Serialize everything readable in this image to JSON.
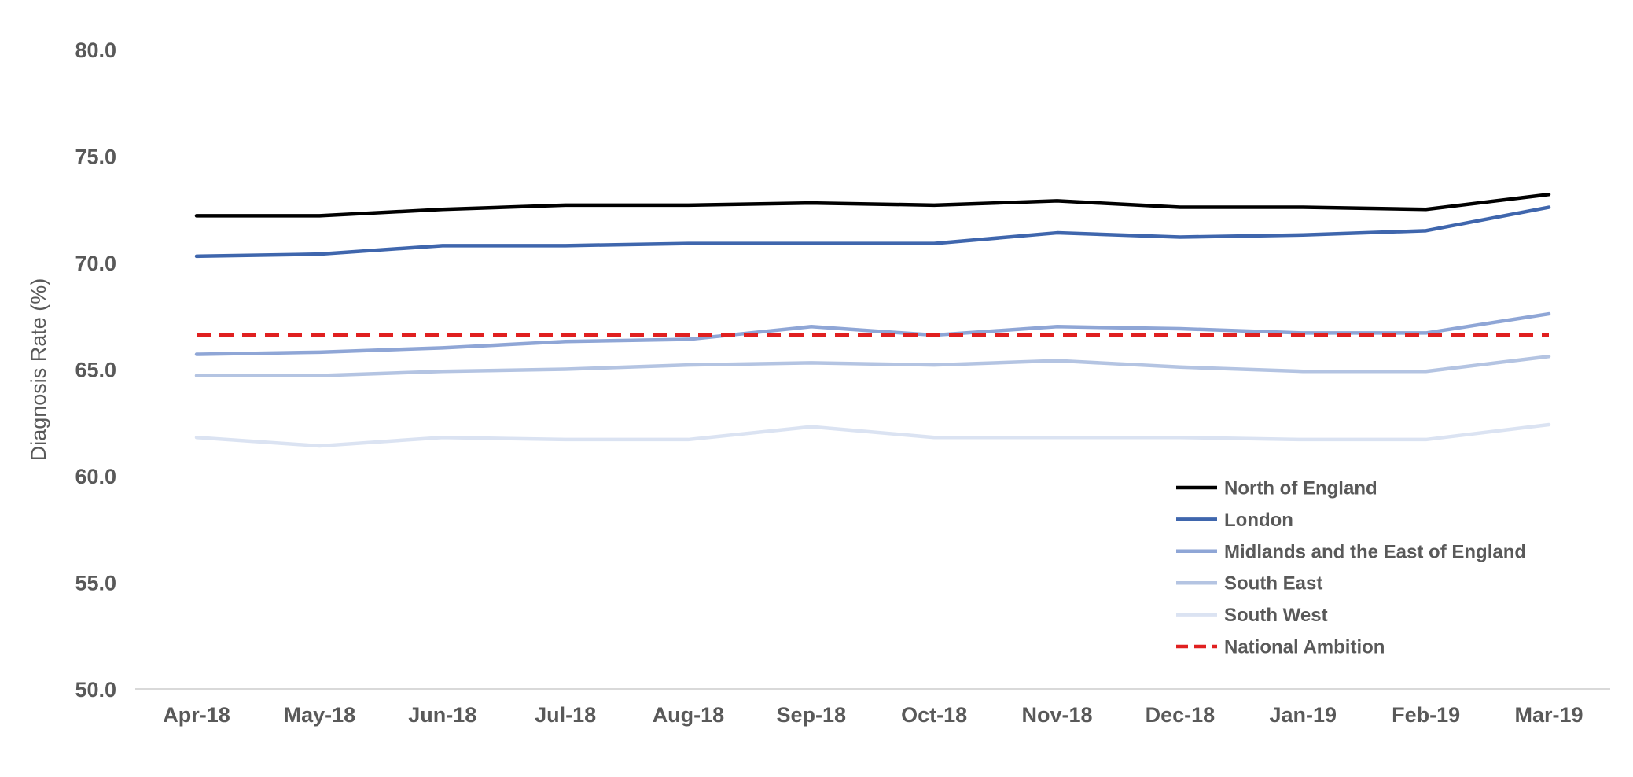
{
  "chart_data": {
    "type": "line",
    "title": "",
    "xlabel": "",
    "ylabel": "Diagnosis Rate (%)",
    "ylim": [
      50,
      80
    ],
    "yticks": [
      "50.0",
      "55.0",
      "60.0",
      "65.0",
      "70.0",
      "75.0",
      "80.0"
    ],
    "grid": false,
    "legend_position": "bottom-right",
    "categories": [
      "Apr-18",
      "May-18",
      "Jun-18",
      "Jul-18",
      "Aug-18",
      "Sep-18",
      "Oct-18",
      "Nov-18",
      "Dec-18",
      "Jan-19",
      "Feb-19",
      "Mar-19"
    ],
    "series": [
      {
        "name": "North of England",
        "color": "#000000",
        "dashed": false,
        "values": [
          72.2,
          72.2,
          72.5,
          72.7,
          72.7,
          72.8,
          72.7,
          72.9,
          72.6,
          72.6,
          72.5,
          73.2
        ]
      },
      {
        "name": "London",
        "color": "#3f66ad",
        "dashed": false,
        "values": [
          70.3,
          70.4,
          70.8,
          70.8,
          70.9,
          70.9,
          70.9,
          71.4,
          71.2,
          71.3,
          71.5,
          72.6
        ]
      },
      {
        "name": "Midlands and the East of England",
        "color": "#8fa6d6",
        "dashed": false,
        "values": [
          65.7,
          65.8,
          66.0,
          66.3,
          66.4,
          67.0,
          66.6,
          67.0,
          66.9,
          66.7,
          66.7,
          67.6
        ]
      },
      {
        "name": "South East",
        "color": "#b4c4e2",
        "dashed": false,
        "values": [
          64.7,
          64.7,
          64.9,
          65.0,
          65.2,
          65.3,
          65.2,
          65.4,
          65.1,
          64.9,
          64.9,
          65.6
        ]
      },
      {
        "name": "South West",
        "color": "#dbe3f2",
        "dashed": false,
        "values": [
          61.8,
          61.4,
          61.8,
          61.7,
          61.7,
          62.3,
          61.8,
          61.8,
          61.8,
          61.7,
          61.7,
          62.4
        ]
      },
      {
        "name": "National Ambition",
        "color": "#e02020",
        "dashed": true,
        "values": [
          66.6,
          66.6,
          66.6,
          66.6,
          66.6,
          66.6,
          66.6,
          66.6,
          66.6,
          66.6,
          66.6,
          66.6
        ]
      }
    ]
  }
}
